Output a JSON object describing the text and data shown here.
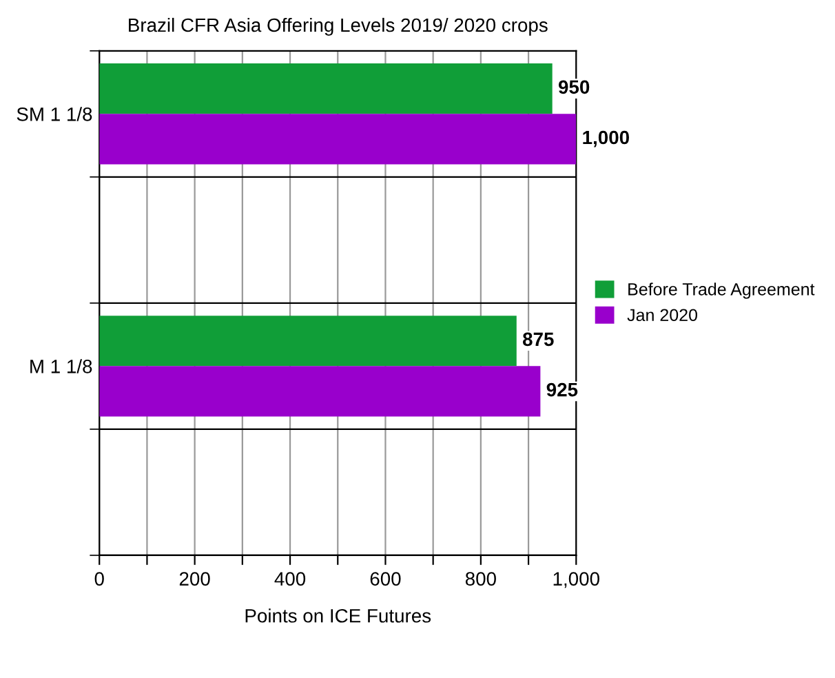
{
  "chart_data": {
    "type": "bar",
    "orientation": "horizontal",
    "title": "Brazil CFR Asia Offering Levels 2019/ 2020 crops",
    "xlabel": "Points on ICE Futures",
    "categories": [
      "SM 1 1/8",
      null,
      "M 1 1/8",
      null
    ],
    "series": [
      {
        "name": "Before Trade Agreement",
        "color": "#109e38",
        "values": [
          950,
          null,
          875,
          null
        ],
        "value_labels": [
          "950",
          null,
          "875",
          null
        ]
      },
      {
        "name": "Jan 2020",
        "color": "#9900cc",
        "values": [
          1000,
          null,
          925,
          null
        ],
        "value_labels": [
          "1,000",
          null,
          "925",
          null
        ]
      }
    ],
    "xlim": [
      0,
      1000
    ],
    "xticks": [
      0,
      {
        "value": 100,
        "label": null
      },
      200,
      {
        "value": 300,
        "label": null
      },
      400,
      {
        "value": 500,
        "label": null
      },
      600,
      {
        "value": 700,
        "label": null
      },
      800,
      {
        "value": 900,
        "label": null
      },
      {
        "value": 1000,
        "label": "1,000"
      }
    ],
    "grid": true,
    "legend": "right"
  }
}
